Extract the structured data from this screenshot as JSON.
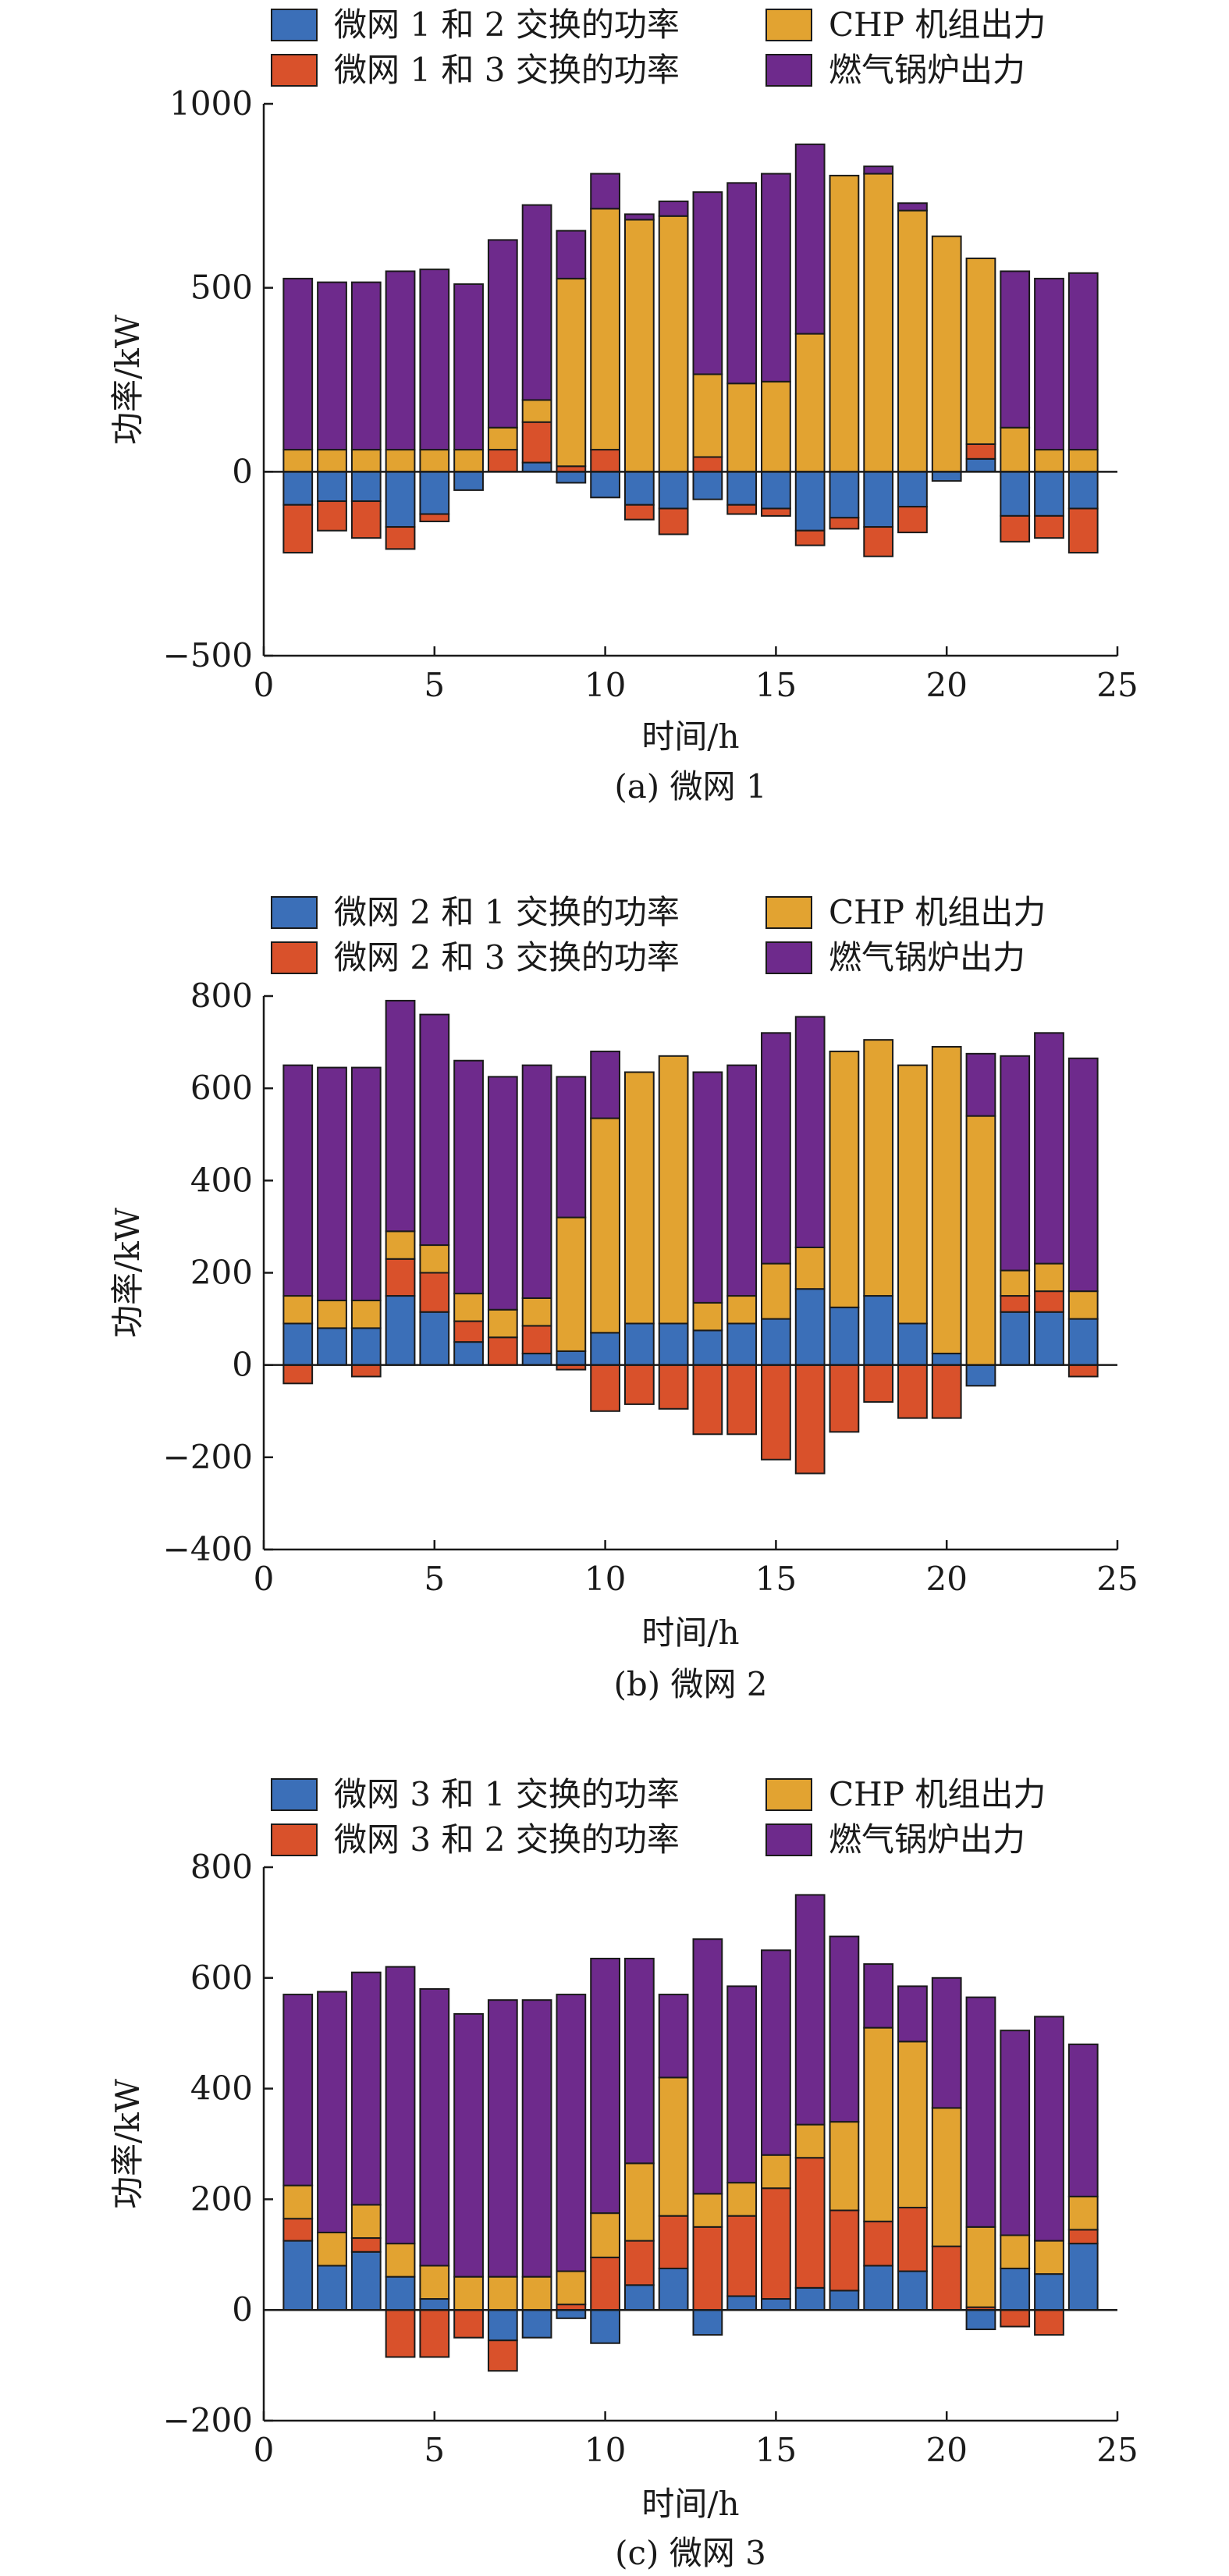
{
  "chart_data": [
    {
      "type": "bar",
      "stacked": true,
      "caption": "(a) 微网 1",
      "xlabel": "时间/h",
      "ylabel": "功率/kW",
      "xlim": [
        0,
        25
      ],
      "ylim": [
        -500,
        1000
      ],
      "xticks": [
        "0",
        "5",
        "10",
        "15",
        "20",
        "25"
      ],
      "yticks": [
        "−500",
        "0",
        "500",
        "1000"
      ],
      "ytick_values": [
        -500,
        0,
        500,
        1000
      ],
      "x": [
        1,
        2,
        3,
        4,
        5,
        6,
        7,
        8,
        9,
        10,
        11,
        12,
        13,
        14,
        15,
        16,
        17,
        18,
        19,
        20,
        21,
        22,
        23,
        24
      ],
      "legend": "top",
      "series": [
        {
          "name": "微网 1 和 2 交换的功率",
          "color": "#3b6fb8",
          "values": [
            -90,
            -80,
            -80,
            -150,
            -115,
            -50,
            0,
            25,
            -30,
            -70,
            -90,
            -100,
            -75,
            -90,
            -100,
            -160,
            -125,
            -150,
            -95,
            -25,
            35,
            -120,
            -120,
            -100
          ]
        },
        {
          "name": "微网 1 和 3 交换的功率",
          "color": "#d9512b",
          "values": [
            -130,
            -80,
            -100,
            -60,
            -20,
            0,
            60,
            110,
            15,
            60,
            -40,
            -70,
            40,
            -25,
            -20,
            -40,
            -30,
            -80,
            -70,
            0,
            40,
            -70,
            -60,
            -120
          ]
        },
        {
          "name": "CHP 机组出力",
          "color": "#e2a331",
          "values": [
            60,
            60,
            60,
            60,
            60,
            60,
            60,
            60,
            510,
            655,
            685,
            695,
            225,
            240,
            245,
            375,
            805,
            810,
            710,
            640,
            505,
            120,
            60,
            60
          ]
        },
        {
          "name": "燃气锅炉出力",
          "color": "#6e2a8c",
          "values": [
            465,
            455,
            455,
            485,
            490,
            450,
            510,
            530,
            130,
            95,
            15,
            40,
            495,
            545,
            565,
            515,
            0,
            20,
            20,
            0,
            0,
            425,
            465,
            480
          ]
        }
      ]
    },
    {
      "type": "bar",
      "stacked": true,
      "caption": "(b) 微网 2",
      "xlabel": "时间/h",
      "ylabel": "功率/kW",
      "xlim": [
        0,
        25
      ],
      "ylim": [
        -400,
        800
      ],
      "xticks": [
        "0",
        "5",
        "10",
        "15",
        "20",
        "25"
      ],
      "yticks": [
        "−400",
        "−200",
        "0",
        "200",
        "400",
        "600",
        "800"
      ],
      "ytick_values": [
        -400,
        -200,
        0,
        200,
        400,
        600,
        800
      ],
      "x": [
        1,
        2,
        3,
        4,
        5,
        6,
        7,
        8,
        9,
        10,
        11,
        12,
        13,
        14,
        15,
        16,
        17,
        18,
        19,
        20,
        21,
        22,
        23,
        24
      ],
      "legend": "top",
      "series": [
        {
          "name": "微网 2 和 1 交换的功率",
          "color": "#3b6fb8",
          "values": [
            90,
            80,
            80,
            150,
            115,
            50,
            0,
            25,
            30,
            70,
            90,
            90,
            75,
            90,
            100,
            165,
            125,
            150,
            90,
            25,
            -45,
            115,
            115,
            100
          ]
        },
        {
          "name": "微网 2 和 3 交换的功率",
          "color": "#d9512b",
          "values": [
            -40,
            0,
            -25,
            80,
            85,
            45,
            60,
            60,
            -10,
            -100,
            -85,
            -95,
            -150,
            -150,
            -205,
            -235,
            -145,
            -80,
            -115,
            -115,
            0,
            35,
            45,
            -25
          ]
        },
        {
          "name": "CHP 机组出力",
          "color": "#e2a331",
          "values": [
            60,
            60,
            60,
            60,
            60,
            60,
            60,
            60,
            290,
            465,
            545,
            580,
            60,
            60,
            120,
            90,
            555,
            555,
            560,
            665,
            540,
            55,
            60,
            60
          ]
        },
        {
          "name": "燃气锅炉出力",
          "color": "#6e2a8c",
          "values": [
            500,
            505,
            505,
            500,
            500,
            505,
            505,
            505,
            305,
            145,
            0,
            0,
            500,
            500,
            500,
            500,
            0,
            0,
            0,
            0,
            135,
            465,
            500,
            505
          ]
        }
      ]
    },
    {
      "type": "bar",
      "stacked": true,
      "caption": "(c) 微网 3",
      "xlabel": "时间/h",
      "ylabel": "功率/kW",
      "xlim": [
        0,
        25
      ],
      "ylim": [
        -200,
        800
      ],
      "xticks": [
        "0",
        "5",
        "10",
        "15",
        "20",
        "25"
      ],
      "yticks": [
        "−200",
        "0",
        "200",
        "400",
        "600",
        "800"
      ],
      "ytick_values": [
        -200,
        0,
        200,
        400,
        600,
        800
      ],
      "x": [
        1,
        2,
        3,
        4,
        5,
        6,
        7,
        8,
        9,
        10,
        11,
        12,
        13,
        14,
        15,
        16,
        17,
        18,
        19,
        20,
        21,
        22,
        23,
        24
      ],
      "legend": "top",
      "series": [
        {
          "name": "微网 3 和 1 交换的功率",
          "color": "#3b6fb8",
          "values": [
            125,
            80,
            105,
            60,
            20,
            0,
            -55,
            -50,
            -15,
            -60,
            45,
            75,
            -45,
            25,
            20,
            40,
            35,
            80,
            70,
            0,
            -35,
            75,
            65,
            120
          ]
        },
        {
          "name": "微网 3 和 2 交换的功率",
          "color": "#d9512b",
          "values": [
            40,
            0,
            25,
            -85,
            -85,
            -50,
            -55,
            0,
            10,
            95,
            80,
            95,
            150,
            145,
            200,
            235,
            145,
            80,
            115,
            115,
            5,
            -30,
            -45,
            25
          ]
        },
        {
          "name": "CHP 机组出力",
          "color": "#e2a331",
          "values": [
            60,
            60,
            60,
            60,
            60,
            60,
            60,
            60,
            60,
            80,
            140,
            250,
            60,
            60,
            60,
            60,
            160,
            350,
            300,
            250,
            145,
            60,
            60,
            60
          ]
        },
        {
          "name": "燃气锅炉出力",
          "color": "#6e2a8c",
          "values": [
            345,
            435,
            420,
            500,
            500,
            475,
            500,
            500,
            500,
            460,
            370,
            150,
            460,
            355,
            370,
            415,
            335,
            115,
            100,
            235,
            415,
            370,
            405,
            275
          ]
        }
      ]
    }
  ]
}
